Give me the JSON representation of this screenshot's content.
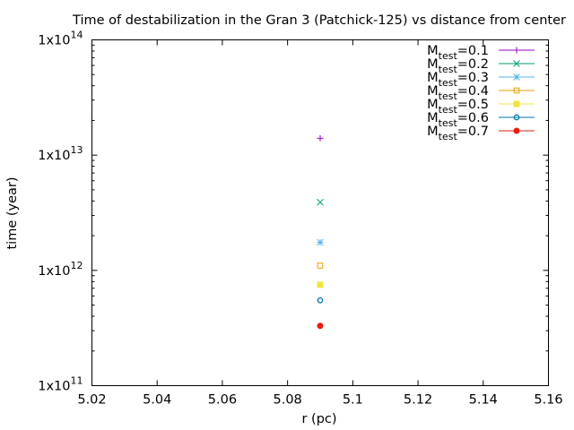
{
  "chart_data": {
    "type": "scatter",
    "title": "Time of destabilization in the Gran 3 (Patchick-125) vs distance from center",
    "xlabel": "r (pc)",
    "ylabel": "time (year)",
    "xlim": [
      5.02,
      5.16
    ],
    "ylim": [
      100000000000.0,
      100000000000000.0
    ],
    "yscale": "log",
    "legend_position": "top-right",
    "grid": false,
    "x_ticks": [
      "5.02",
      "5.04",
      "5.06",
      "5.08",
      "5.1",
      "5.12",
      "5.14",
      "5.16"
    ],
    "y_ticks": [
      {
        "value": 100000000000.0,
        "mant": "1x10",
        "exp": "11"
      },
      {
        "value": 1000000000000.0,
        "mant": "1x10",
        "exp": "12"
      },
      {
        "value": 10000000000000.0,
        "mant": "1x10",
        "exp": "13"
      },
      {
        "value": 100000000000000.0,
        "mant": "1x10",
        "exp": "14"
      }
    ],
    "series": [
      {
        "name": "Mtest=0.1",
        "label_main": "M",
        "label_sub": "test",
        "label_rest": "=0.1",
        "color": "#9400d3",
        "marker": "plus",
        "points": [
          {
            "x": 5.09,
            "y": 14000000000000.0
          }
        ]
      },
      {
        "name": "Mtest=0.2",
        "label_main": "M",
        "label_sub": "test",
        "label_rest": "=0.2",
        "color": "#009e73",
        "marker": "cross",
        "points": [
          {
            "x": 5.09,
            "y": 3900000000000.0
          }
        ]
      },
      {
        "name": "Mtest=0.3",
        "label_main": "M",
        "label_sub": "test",
        "label_rest": "=0.3",
        "color": "#56b4e9",
        "marker": "star",
        "points": [
          {
            "x": 5.09,
            "y": 1750000000000.0
          }
        ]
      },
      {
        "name": "Mtest=0.4",
        "label_main": "M",
        "label_sub": "test",
        "label_rest": "=0.4",
        "color": "#e69f00",
        "marker": "square-open",
        "points": [
          {
            "x": 5.09,
            "y": 1100000000000.0
          }
        ]
      },
      {
        "name": "Mtest=0.5",
        "label_main": "M",
        "label_sub": "test",
        "label_rest": "=0.5",
        "color": "#f0e442",
        "marker": "square-filled",
        "points": [
          {
            "x": 5.09,
            "y": 750000000000.0
          }
        ]
      },
      {
        "name": "Mtest=0.6",
        "label_main": "M",
        "label_sub": "test",
        "label_rest": "=0.6",
        "color": "#0072b2",
        "marker": "circle-open",
        "points": [
          {
            "x": 5.09,
            "y": 550000000000.0
          }
        ]
      },
      {
        "name": "Mtest=0.7",
        "label_main": "M",
        "label_sub": "test",
        "label_rest": "=0.7",
        "color": "#e51e10",
        "marker": "circle-filled",
        "points": [
          {
            "x": 5.09,
            "y": 330000000000.0
          }
        ]
      }
    ]
  }
}
